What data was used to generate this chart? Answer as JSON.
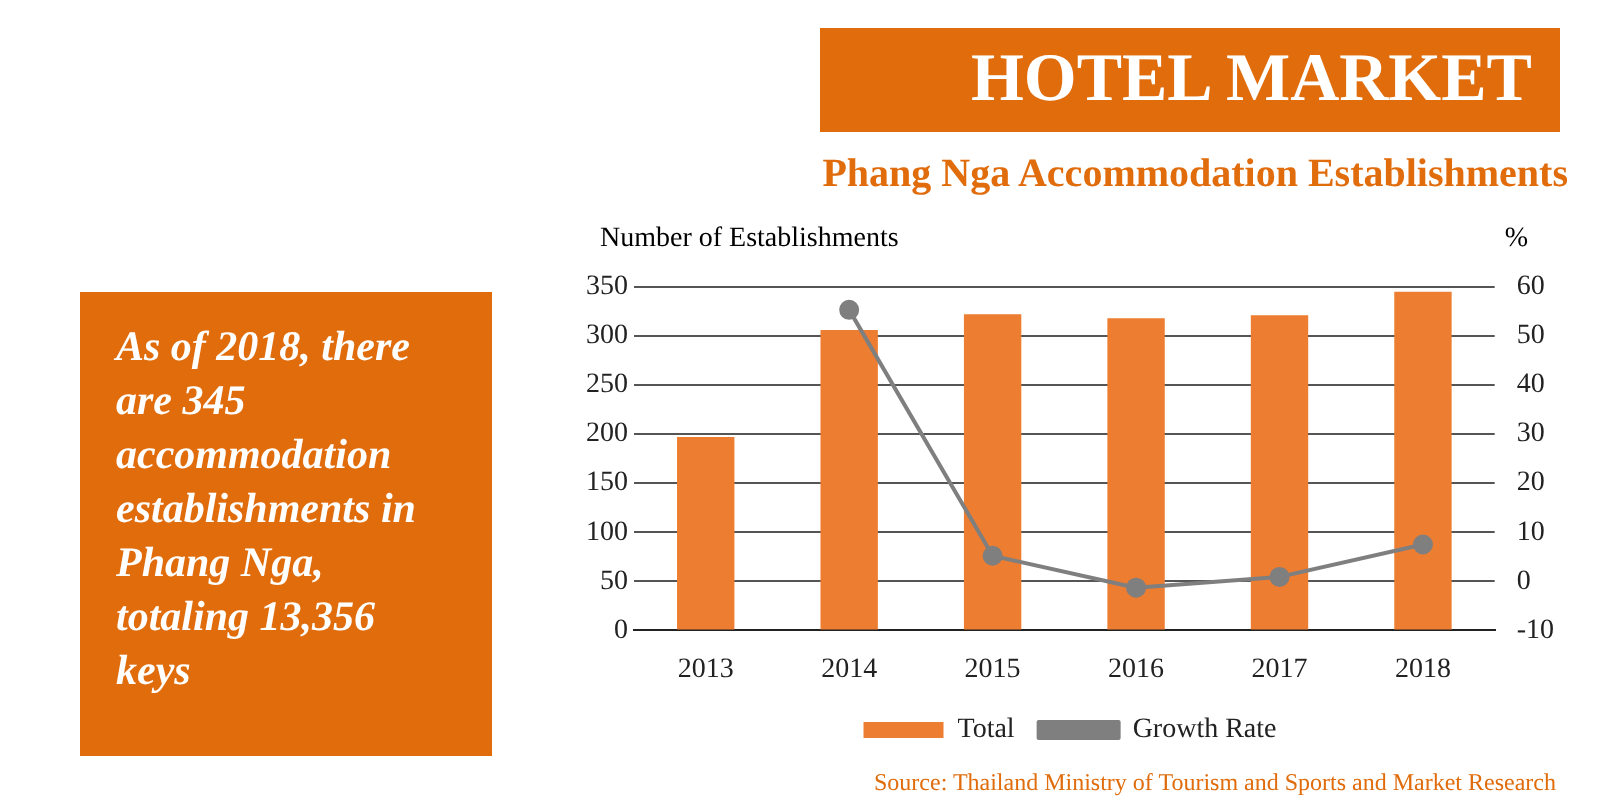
{
  "chart_data": {
    "type": "bar",
    "title": "HOTEL MARKET",
    "subtitle": "Phang Nga Accommodation Establishments",
    "ylabel": "Number of Establishments",
    "y2label": "%",
    "categories": [
      "2013",
      "2014",
      "2015",
      "2016",
      "2017",
      "2018"
    ],
    "series": [
      {
        "name": "Total",
        "color": "#ed7d31",
        "values": [
          197,
          306,
          322,
          318,
          321,
          345
        ]
      },
      {
        "name": "Growth Rate",
        "type": "line",
        "axis": "y2",
        "color": "#7f7f7f",
        "marker": "circle",
        "values": [
          null,
          55.3,
          5.2,
          -1.3,
          0.9,
          7.5
        ]
      }
    ],
    "ylim": [
      0,
      350
    ],
    "yticks": [
      0,
      50,
      100,
      150,
      200,
      250,
      300,
      350
    ],
    "y2lim": [
      -10,
      60
    ],
    "y2ticks": [
      -10,
      0,
      10,
      20,
      30,
      40,
      50,
      60
    ],
    "grid": "y",
    "legend": "bottom",
    "annotations": [
      "As of 2018, there are 345 accommodation establishments in Phang Nga, totaling 13,356 keys",
      "Source: Thailand Ministry of Tourism and Sports and Market Research"
    ]
  }
}
